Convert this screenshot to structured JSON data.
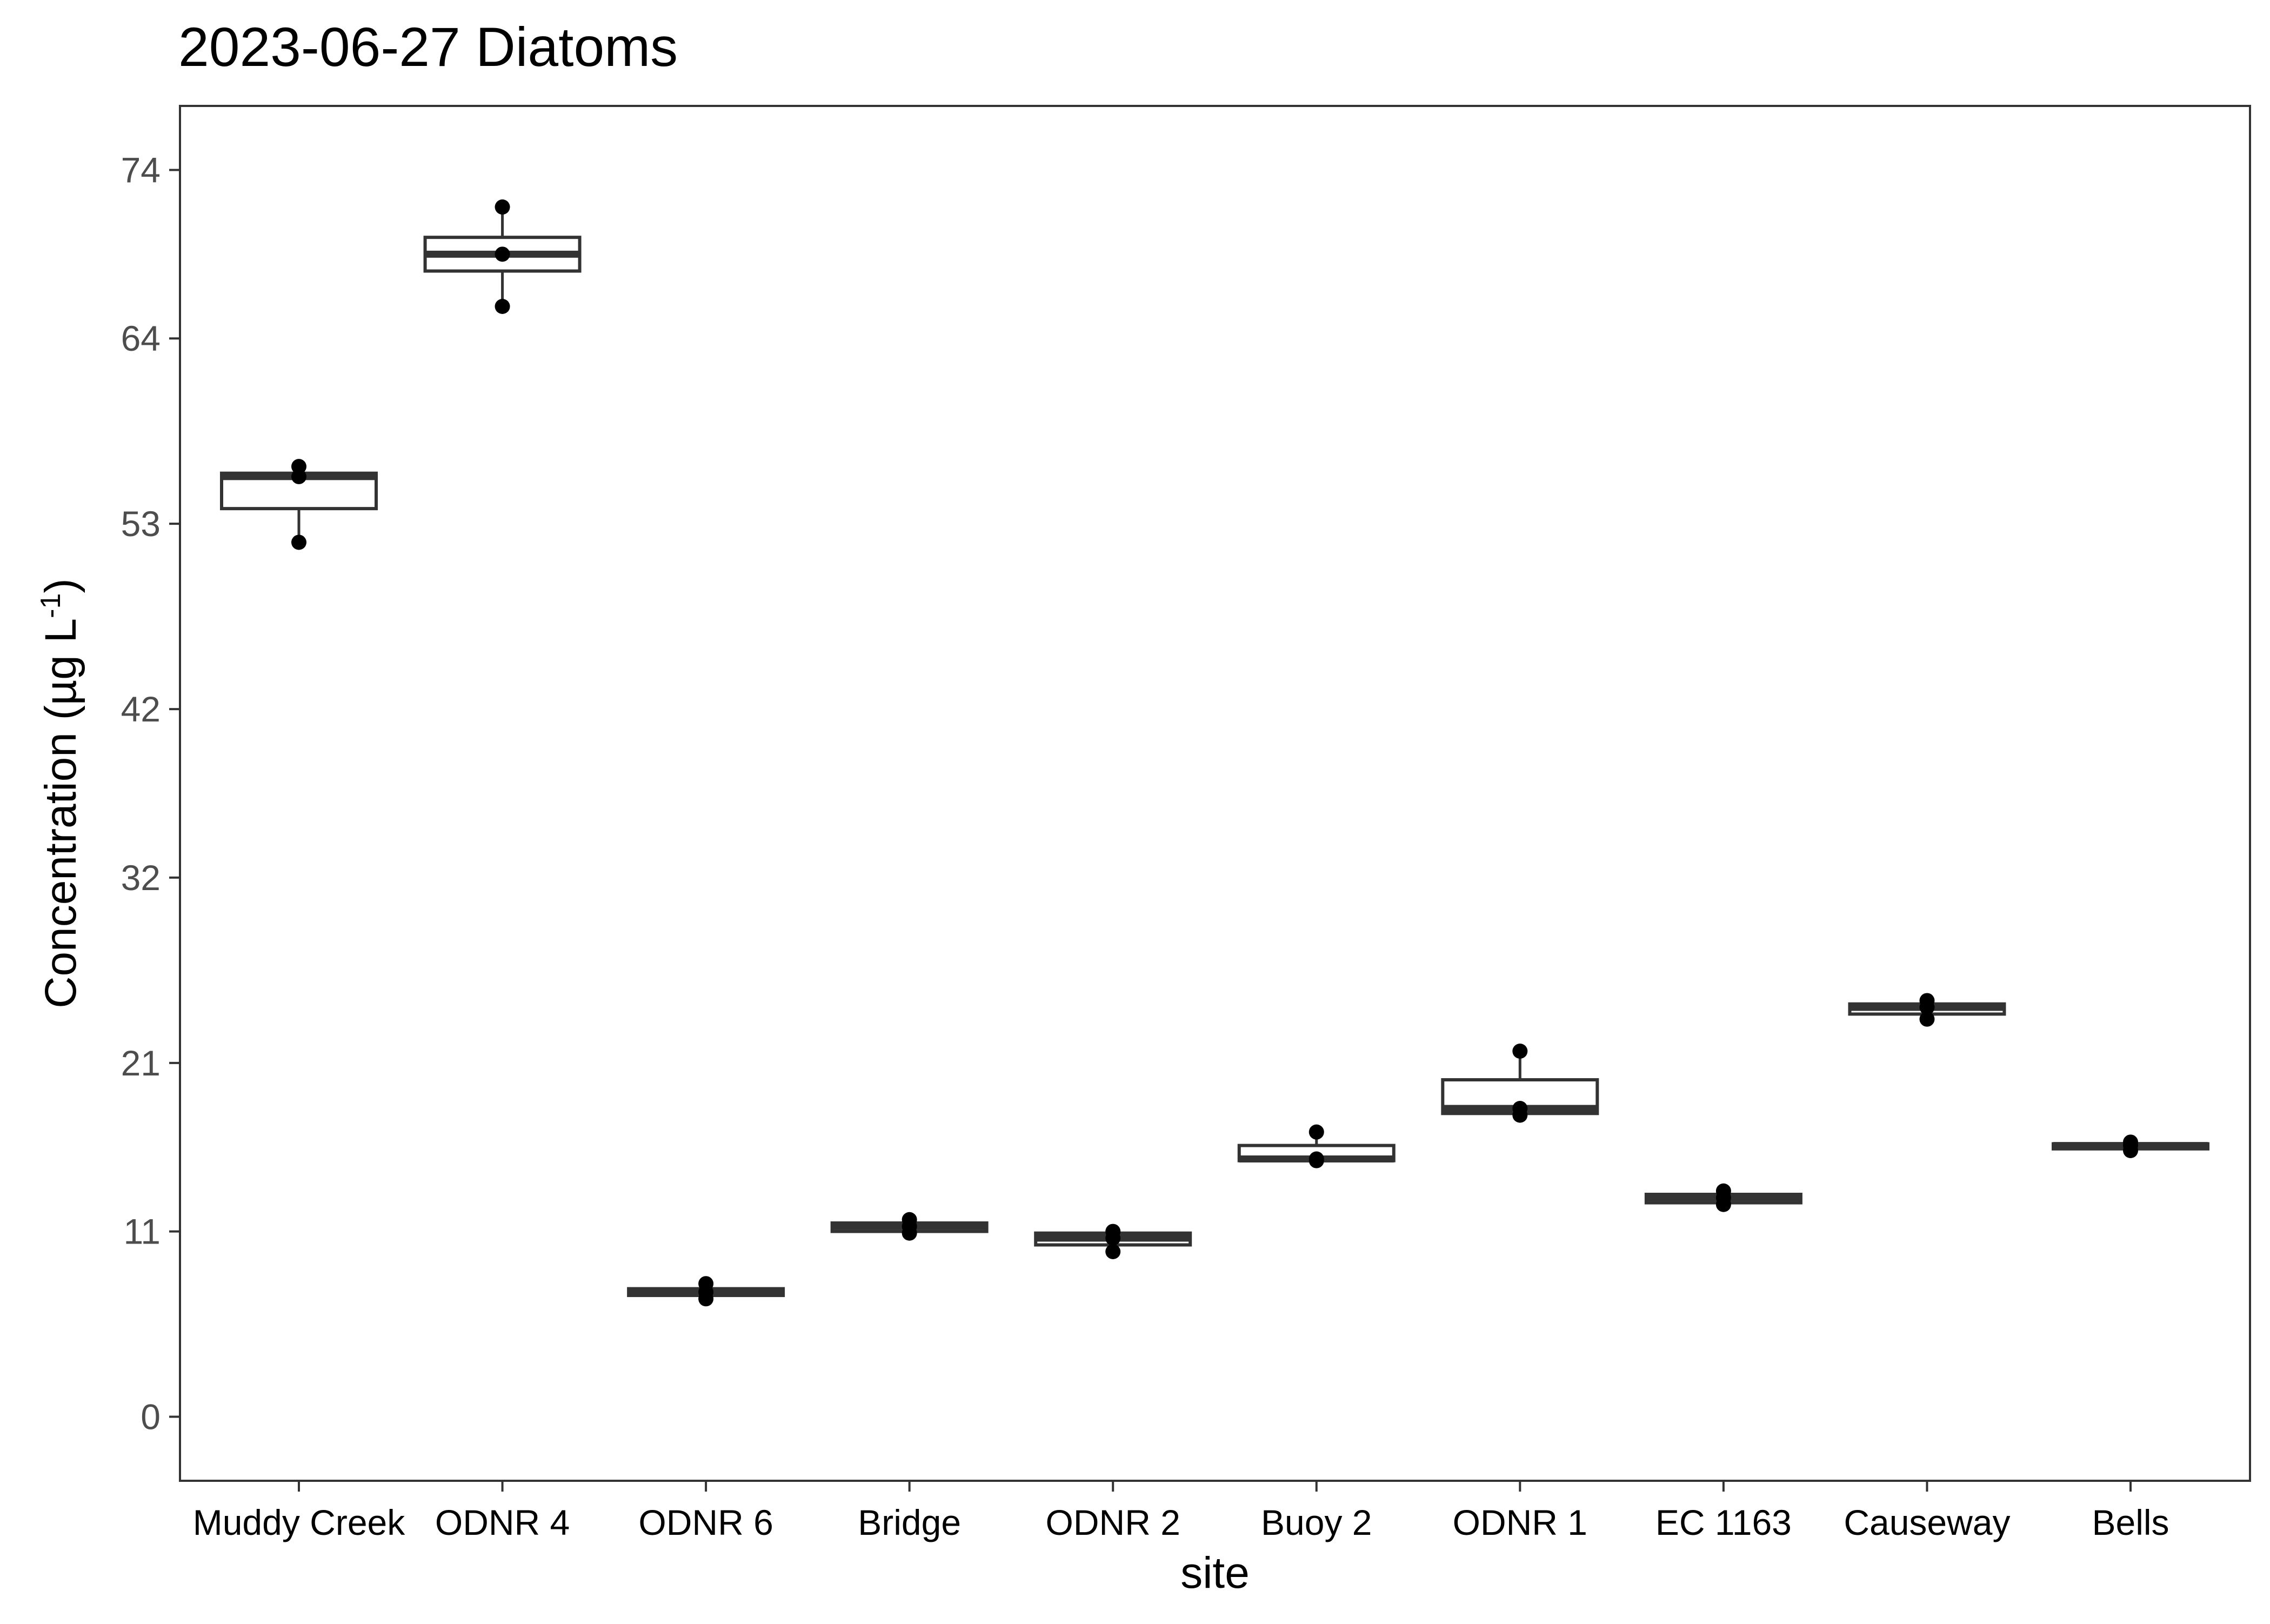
{
  "chart_data": {
    "type": "box",
    "title": "2023-06-27 Diatoms",
    "xlabel": "site",
    "ylabel": "Concentration (µg L⁻¹)",
    "ylabel_parts": {
      "main": "Concentration (µg L",
      "superscript": "-1",
      "close": ")"
    },
    "ylim": [
      -3.8,
      77.8
    ],
    "yticks": [
      0,
      11,
      21,
      32,
      42,
      53,
      64,
      74
    ],
    "ytick_labels": [
      "0",
      "11",
      "21",
      "32",
      "42",
      "53",
      "64",
      "74"
    ],
    "grid": false,
    "legend": "none",
    "categories": [
      "Muddy Creek",
      "ODNR 4",
      "ODNR 6",
      "Bridge",
      "ODNR 2",
      "Buoy 2",
      "ODNR 1",
      "EC 1163",
      "Causeway",
      "Bells"
    ],
    "boxes": [
      {
        "site": "Muddy Creek",
        "min": 51.9,
        "q1": 53.9,
        "median": 55.8,
        "q3": 56.0,
        "max": 56.4,
        "points": [
          51.9,
          55.8,
          56.4
        ]
      },
      {
        "site": "ODNR 4",
        "min": 65.9,
        "q1": 68.0,
        "median": 69.0,
        "q3": 70.0,
        "max": 71.8,
        "points": [
          65.9,
          69.0,
          71.8
        ]
      },
      {
        "site": "ODNR 6",
        "min": 7.0,
        "q1": 7.2,
        "median": 7.4,
        "q3": 7.6,
        "max": 7.9,
        "points": [
          7.0,
          7.4,
          7.9
        ]
      },
      {
        "site": "Bridge",
        "min": 10.9,
        "q1": 11.0,
        "median": 11.3,
        "q3": 11.5,
        "max": 11.7,
        "points": [
          10.9,
          11.3,
          11.7
        ]
      },
      {
        "site": "ODNR 2",
        "min": 9.8,
        "q1": 10.2,
        "median": 10.6,
        "q3": 10.9,
        "max": 11.0,
        "points": [
          9.8,
          10.6,
          11.0
        ]
      },
      {
        "site": "Buoy 2",
        "min": 15.2,
        "q1": 15.2,
        "median": 15.3,
        "q3": 16.1,
        "max": 16.9,
        "points": [
          15.2,
          15.3,
          16.9
        ]
      },
      {
        "site": "ODNR 1",
        "min": 17.9,
        "q1": 18.0,
        "median": 18.3,
        "q3": 20.0,
        "max": 21.7,
        "points": [
          17.9,
          18.3,
          21.7
        ]
      },
      {
        "site": "EC 1163",
        "min": 12.6,
        "q1": 12.7,
        "median": 13.0,
        "q3": 13.2,
        "max": 13.4,
        "points": [
          12.6,
          13.0,
          13.4
        ]
      },
      {
        "site": "Causeway",
        "min": 23.6,
        "q1": 23.9,
        "median": 24.3,
        "q3": 24.5,
        "max": 24.7,
        "points": [
          23.6,
          24.3,
          24.7
        ]
      },
      {
        "site": "Bells",
        "min": 15.8,
        "q1": 15.9,
        "median": 16.1,
        "q3": 16.2,
        "max": 16.3,
        "points": [
          15.8,
          16.1,
          16.3
        ]
      }
    ],
    "colors": {
      "box_stroke": "#333333",
      "box_fill": "#ffffff",
      "points": "#000000",
      "panel_border": "#333333",
      "tick_text": "#4d4d4d",
      "axis_ticks": "#333333"
    }
  }
}
